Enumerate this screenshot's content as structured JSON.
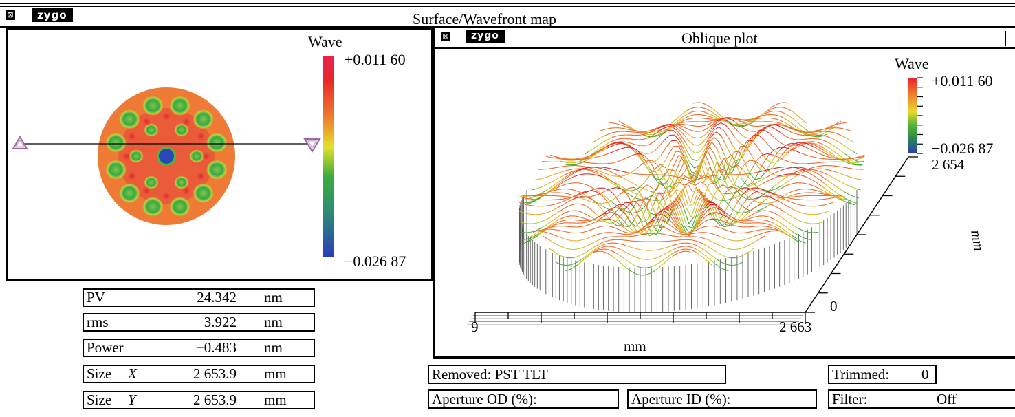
{
  "main_window": {
    "close_glyph": "⊠",
    "logo": "zygo",
    "title": "Surface/Wavefront map"
  },
  "surface_map": {
    "colorbar": {
      "label": "Wave",
      "max": "+0.011 60",
      "min": "−0.026 87"
    }
  },
  "stats": [
    {
      "name": "PV",
      "value": "24.342",
      "unit": "nm"
    },
    {
      "name": "rms",
      "value": "3.922",
      "unit": "nm"
    },
    {
      "name": "Power",
      "value": "−0.483",
      "unit": "nm"
    },
    {
      "name": "Size",
      "axis": "X",
      "value": "2 653.9",
      "unit": "mm"
    },
    {
      "name": "Size",
      "axis": "Y",
      "value": "2 653.9",
      "unit": "mm"
    }
  ],
  "oblique_plot": {
    "close_glyph": "⊠",
    "logo": "zygo",
    "title": "Oblique plot",
    "colorbar": {
      "label": "Wave",
      "max": "+0.011 60",
      "min": "−0.026 87"
    },
    "x_axis": {
      "start": "9",
      "end": "2 663",
      "label": "mm"
    },
    "y_axis": {
      "start": "0",
      "end": "2 654",
      "label": "mm"
    }
  },
  "info": {
    "removed": "Removed: PST TLT",
    "trimmed_label": "Trimmed:",
    "trimmed_value": "0",
    "aperture_od": "Aperture OD (%):",
    "aperture_id": "Aperture ID (%):",
    "filter_label": "Filter:",
    "filter_value": "Off"
  },
  "colors": {
    "wave_max": "#e8232a",
    "wave_mid_high": "#ee9a2e",
    "wave_mid": "#e3e22a",
    "wave_mid_low": "#4bb43a",
    "wave_min": "#2a46b8",
    "marker": "#d48fd4"
  }
}
